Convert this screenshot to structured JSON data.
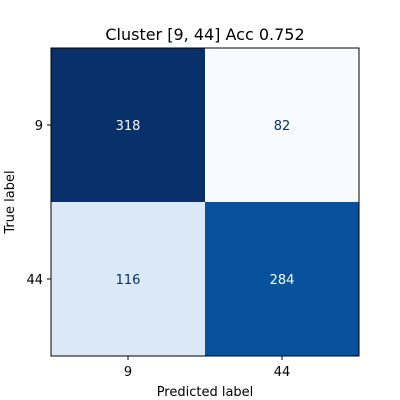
{
  "chart_data": {
    "type": "heatmap",
    "title": "Cluster [9, 44] Acc 0.752",
    "xlabel": "Predicted label",
    "ylabel": "True label",
    "x_categories": [
      "9",
      "44"
    ],
    "y_categories": [
      "9",
      "44"
    ],
    "values": [
      [
        318,
        82
      ],
      [
        116,
        284
      ]
    ],
    "colormap": "Blues",
    "colors": [
      [
        "#08306b",
        "#f7fbff"
      ],
      [
        "#dbe9f6",
        "#08519c"
      ]
    ],
    "value_text_colors": [
      [
        "#f7fbff",
        "#08306b"
      ],
      [
        "#08306b",
        "#f7fbff"
      ]
    ],
    "grid": false,
    "legend": "none"
  }
}
